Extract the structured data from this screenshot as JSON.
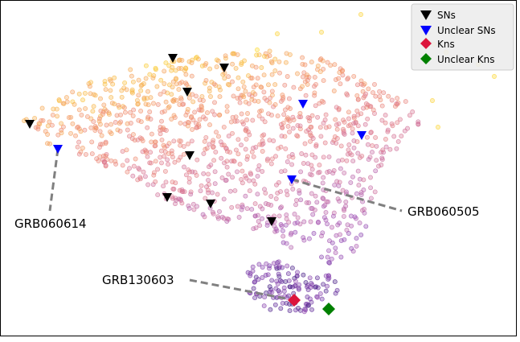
{
  "chart_data": {
    "type": "scatter",
    "xlabel": "",
    "ylabel": "",
    "grid": false,
    "legend_placement": "top-right",
    "legend": [
      {
        "key": "sn",
        "label": "SNs",
        "marker": "triangle-down",
        "color": "#000000"
      },
      {
        "key": "unclear_sn",
        "label": "Unclear SNs",
        "marker": "triangle-down",
        "color": "#0000ff"
      },
      {
        "key": "kn",
        "label": "Kns",
        "marker": "diamond",
        "color": "#dc143c"
      },
      {
        "key": "unclear_kn",
        "label": "Unclear Kns",
        "marker": "diamond",
        "color": "#008000"
      }
    ],
    "annotations": [
      {
        "text": "GRB060614",
        "target": "unclear_sn_1"
      },
      {
        "text": "GRB060505",
        "target": "unclear_sn_4"
      },
      {
        "text": "GRB130603",
        "target": "kn_1"
      }
    ],
    "series": [
      {
        "key": "sn",
        "points": [
          [
            37,
            154
          ],
          [
            215,
            72
          ],
          [
            279,
            84
          ],
          [
            233,
            114
          ],
          [
            236,
            193
          ],
          [
            208,
            245
          ],
          [
            262,
            253
          ],
          [
            338,
            275
          ]
        ]
      },
      {
        "key": "unclear_sn",
        "points": [
          [
            72,
            185
          ],
          [
            377,
            129
          ],
          [
            450,
            168
          ],
          [
            363,
            223
          ]
        ]
      },
      {
        "key": "kn",
        "points": [
          [
            366,
            373
          ]
        ]
      },
      {
        "key": "unclear_kn",
        "points": [
          [
            409,
            384
          ]
        ]
      }
    ],
    "background_colors": [
      "#fde725",
      "#f9c23c",
      "#f2916a",
      "#e07a8a",
      "#c46ca6",
      "#9b4fb5",
      "#6a2fa0",
      "#3f1a80"
    ]
  }
}
